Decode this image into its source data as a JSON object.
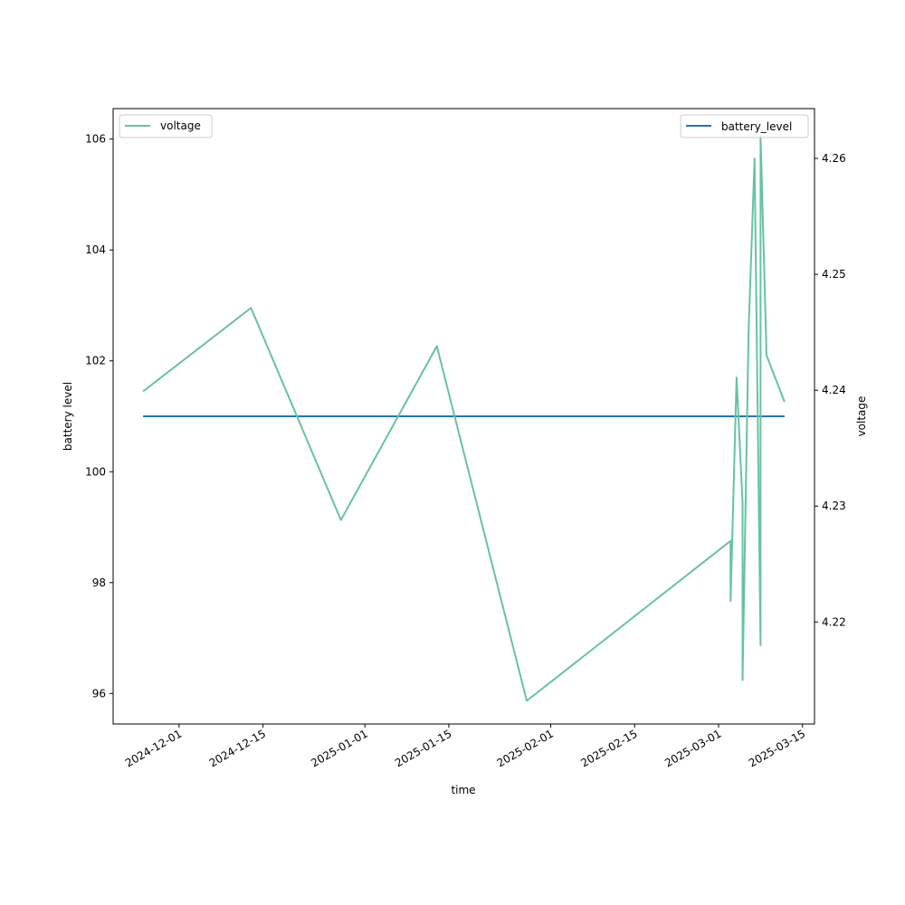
{
  "chart_data": {
    "type": "line",
    "xlabel": "time",
    "ylabel_left": "battery level",
    "ylabel_right": "voltage",
    "x_ticks": [
      "2024-12-01",
      "2024-12-15",
      "2025-01-01",
      "2025-01-15",
      "2025-02-01",
      "2025-02-15",
      "2025-03-01",
      "2025-03-15"
    ],
    "y_left_ticks": [
      96,
      98,
      100,
      102,
      104,
      106
    ],
    "y_right_ticks": [
      4.22,
      4.23,
      4.24,
      4.25,
      4.26
    ],
    "xlim": [
      "2024-11-20",
      "2025-03-17"
    ],
    "ylim_left": [
      95.45,
      106.55
    ],
    "ylim_right": [
      4.2112,
      4.2643
    ],
    "grid": false,
    "series": [
      {
        "name": "battery_level",
        "axis": "left",
        "color": "#1f77b4",
        "legend_position": "upper-right",
        "points": [
          {
            "x": "2024-11-25",
            "y": 101
          },
          {
            "x": "2025-03-12",
            "y": 101
          }
        ]
      },
      {
        "name": "voltage",
        "axis": "right",
        "color": "#66c2a5",
        "legend_position": "upper-left",
        "points": [
          {
            "x": "2024-11-25",
            "y": 4.2399
          },
          {
            "x": "2024-12-13",
            "y": 4.2471
          },
          {
            "x": "2024-12-28",
            "y": 4.2288
          },
          {
            "x": "2025-01-13",
            "y": 4.2438
          },
          {
            "x": "2025-01-28",
            "y": 4.2132
          },
          {
            "x": "2025-03-03",
            "y": 4.227
          },
          {
            "x": "2025-03-03",
            "y": 4.2218
          },
          {
            "x": "2025-03-04",
            "y": 4.2411
          },
          {
            "x": "2025-03-05",
            "y": 4.2303
          },
          {
            "x": "2025-03-05",
            "y": 4.215
          },
          {
            "x": "2025-03-06",
            "y": 4.245
          },
          {
            "x": "2025-03-07",
            "y": 4.26
          },
          {
            "x": "2025-03-08",
            "y": 4.218
          },
          {
            "x": "2025-03-08",
            "y": 4.262
          },
          {
            "x": "2025-03-09",
            "y": 4.243
          },
          {
            "x": "2025-03-12",
            "y": 4.239
          }
        ]
      }
    ]
  }
}
